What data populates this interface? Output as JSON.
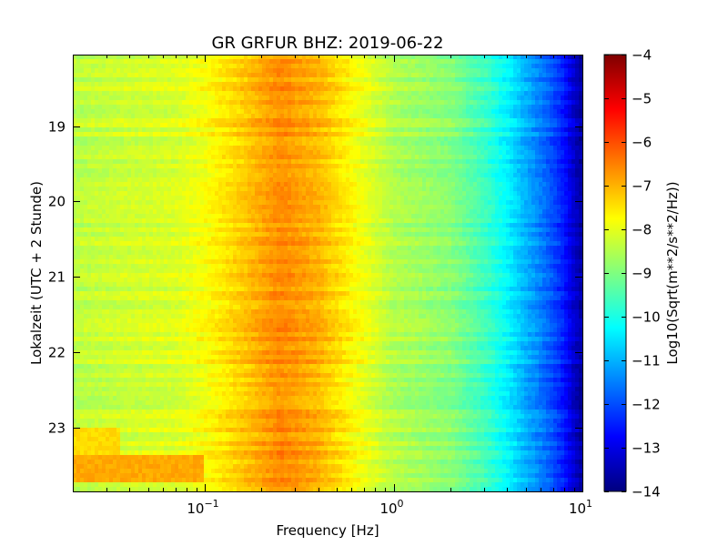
{
  "chart_data": {
    "type": "heatmap",
    "title": "GR GRFUR BHZ: 2019-06-22",
    "xlabel": "Frequency [Hz]",
    "ylabel": "Lokalzeit (UTC + 2 Stunde)",
    "x_scale": "log",
    "xlim": [
      0.02,
      10
    ],
    "x_ticks": [
      {
        "value": 0.1,
        "base": "10",
        "exp": "−1"
      },
      {
        "value": 1,
        "base": "10",
        "exp": "0"
      },
      {
        "value": 10,
        "base": "10",
        "exp": "1"
      }
    ],
    "ylim": [
      18.05,
      23.85
    ],
    "y_inverted": true,
    "y_ticks": [
      "19",
      "20",
      "21",
      "22",
      "23"
    ],
    "colorbar": {
      "label": "Log10(Sqrt(m**2/s**2/Hz))",
      "range": [
        -14,
        -4
      ],
      "ticks": [
        "−4",
        "−5",
        "−6",
        "−7",
        "−8",
        "−9",
        "−10",
        "−11",
        "−12",
        "−13",
        "−14"
      ],
      "colormap": "jet"
    },
    "spectrum_profile": {
      "frequency_hz": [
        0.02,
        0.04,
        0.07,
        0.1,
        0.15,
        0.2,
        0.25,
        0.3,
        0.4,
        0.6,
        1.0,
        2.0,
        3.0,
        4.0,
        5.0,
        6.0,
        7.0,
        8.0,
        9.0,
        10.0
      ],
      "log10_psd": [
        -8.4,
        -8.2,
        -8.1,
        -7.8,
        -7.3,
        -6.9,
        -6.6,
        -6.75,
        -7.0,
        -7.7,
        -8.5,
        -8.9,
        -9.6,
        -10.3,
        -11.0,
        -11.5,
        -12.0,
        -12.5,
        -13.2,
        -13.7
      ]
    },
    "events": [
      {
        "time": 23.55,
        "freq_range_hz": [
          0.02,
          0.1
        ],
        "log10_psd": -6.9
      },
      {
        "time": 23.2,
        "freq_range_hz": [
          0.02,
          0.035
        ],
        "log10_psd": -7.4
      }
    ]
  }
}
